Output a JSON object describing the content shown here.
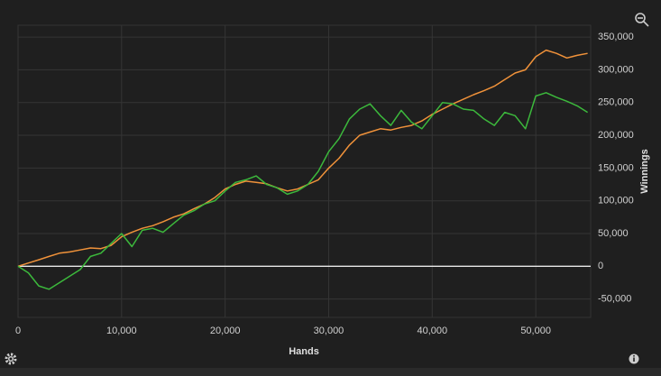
{
  "chart_data": {
    "type": "line",
    "x_label": "Hands",
    "y_label": "Winnings",
    "x": [
      0,
      1000,
      2000,
      3000,
      4000,
      5000,
      6000,
      7000,
      8000,
      9000,
      10000,
      11000,
      12000,
      13000,
      14000,
      15000,
      16000,
      17000,
      18000,
      19000,
      20000,
      21000,
      22000,
      23000,
      24000,
      25000,
      26000,
      27000,
      28000,
      29000,
      30000,
      31000,
      32000,
      33000,
      34000,
      35000,
      36000,
      37000,
      38000,
      39000,
      40000,
      41000,
      42000,
      43000,
      44000,
      45000,
      46000,
      47000,
      48000,
      49000,
      50000,
      51000,
      52000,
      53000,
      54000,
      55000
    ],
    "series": [
      {
        "color": "#f0923a",
        "values": [
          0,
          5000,
          10000,
          15000,
          20000,
          22000,
          25000,
          28000,
          27000,
          32000,
          45000,
          52000,
          58000,
          62000,
          68000,
          75000,
          80000,
          88000,
          95000,
          105000,
          118000,
          125000,
          130000,
          128000,
          126000,
          120000,
          115000,
          118000,
          125000,
          132000,
          150000,
          165000,
          185000,
          200000,
          205000,
          210000,
          208000,
          212000,
          215000,
          222000,
          232000,
          240000,
          248000,
          255000,
          262000,
          268000,
          275000,
          285000,
          295000,
          300000,
          320000,
          330000,
          325000,
          318000,
          322000,
          325000
        ]
      },
      {
        "color": "#3cb93c",
        "values": [
          0,
          -10000,
          -30000,
          -35000,
          -25000,
          -15000,
          -5000,
          15000,
          20000,
          35000,
          50000,
          30000,
          55000,
          58000,
          52000,
          65000,
          78000,
          85000,
          95000,
          100000,
          115000,
          128000,
          132000,
          138000,
          125000,
          120000,
          110000,
          115000,
          125000,
          145000,
          175000,
          195000,
          225000,
          240000,
          248000,
          230000,
          215000,
          238000,
          220000,
          210000,
          230000,
          250000,
          248000,
          240000,
          238000,
          225000,
          215000,
          235000,
          230000,
          210000,
          260000,
          265000,
          258000,
          252000,
          245000,
          235000
        ]
      }
    ],
    "xlim": [
      0,
      55300
    ],
    "ylim": [
      -78000,
      368000
    ],
    "xticks": [
      0,
      {
        "value": 10000,
        "label": "10,000"
      },
      {
        "value": 20000,
        "label": "20,000"
      },
      {
        "value": 30000,
        "label": "30,000"
      },
      {
        "value": 40000,
        "label": "40,000"
      },
      {
        "value": 50000,
        "label": "50,000"
      }
    ],
    "yticks": [
      {
        "value": -50000,
        "label": "-50,000"
      },
      0,
      {
        "value": 50000,
        "label": "50,000"
      },
      {
        "value": 100000,
        "label": "100,000"
      },
      {
        "value": 150000,
        "label": "150,000"
      },
      {
        "value": 200000,
        "label": "200,000"
      },
      {
        "value": 250000,
        "label": "250,000"
      },
      {
        "value": 300000,
        "label": "300,000"
      },
      {
        "value": 350000,
        "label": "350,000"
      }
    ],
    "grid": true
  }
}
